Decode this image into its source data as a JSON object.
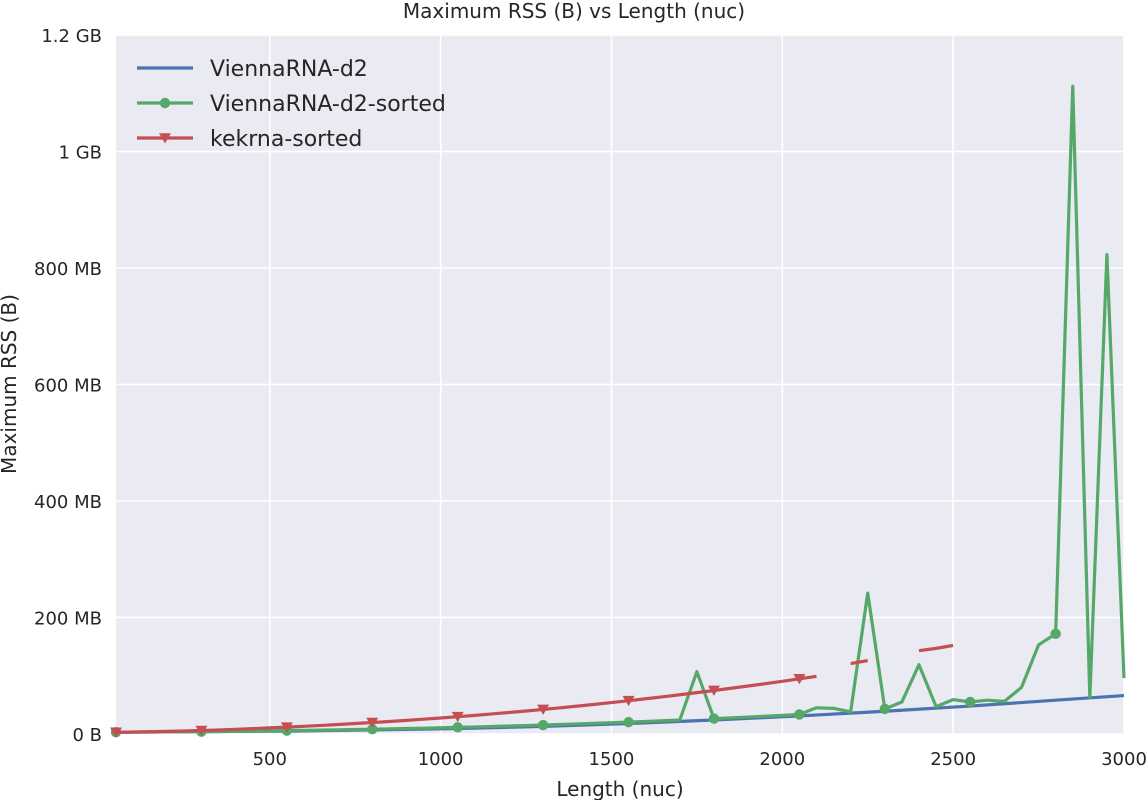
{
  "chart_data": {
    "type": "line",
    "title": "Maximum RSS (B) vs Length (nuc)",
    "xlabel": "Length (nuc)",
    "ylabel": "Maximum RSS (B)",
    "xlim": [
      50,
      3000
    ],
    "ylim": [
      0,
      1200000000
    ],
    "x_ticks": [
      500,
      1000,
      1500,
      2000,
      2500,
      3000
    ],
    "x_tick_labels": [
      "500",
      "1000",
      "1500",
      "2000",
      "2500",
      "3000"
    ],
    "y_ticks": [
      0,
      200000000,
      400000000,
      600000000,
      800000000,
      1000000000,
      1200000000
    ],
    "y_tick_labels": [
      "0 B",
      "200 MB",
      "400 MB",
      "600 MB",
      "800 MB",
      "1 GB",
      "1.2 GB"
    ],
    "grid": true,
    "legend_position": "top-left",
    "series": [
      {
        "name": "ViennaRNA-d2",
        "color": "#4c72b0",
        "marker": "none",
        "x": [
          50,
          300,
          550,
          800,
          1050,
          1300,
          1550,
          1800,
          2050,
          2300,
          2550,
          2800,
          3000
        ],
        "y": [
          3000000,
          4000000,
          5000000,
          7000000,
          9500000,
          13000000,
          18000000,
          24000000,
          31000000,
          39000000,
          48000000,
          58000000,
          66000000
        ]
      },
      {
        "name": "ViennaRNA-d2-sorted",
        "color": "#55a868",
        "marker": "circle",
        "marker_every": 5,
        "x": [
          50,
          100,
          150,
          200,
          250,
          300,
          350,
          400,
          450,
          500,
          550,
          600,
          650,
          700,
          750,
          800,
          850,
          900,
          950,
          1000,
          1050,
          1100,
          1150,
          1200,
          1250,
          1300,
          1350,
          1400,
          1450,
          1500,
          1550,
          1600,
          1650,
          1700,
          1750,
          1800,
          1850,
          1900,
          1950,
          2000,
          2050,
          2100,
          2150,
          2200,
          2250,
          2300,
          2350,
          2400,
          2450,
          2500,
          2550,
          2600,
          2650,
          2700,
          2750,
          2800,
          2850,
          2900,
          2950,
          3000
        ],
        "y": [
          3000000,
          3200000,
          3400000,
          3600000,
          3800000,
          4000000,
          4300000,
          4600000,
          5000000,
          5400000,
          5800000,
          6200000,
          6700000,
          7200000,
          7700000,
          8200000,
          8800000,
          9400000,
          10000000,
          10700000,
          11400000,
          12100000,
          12900000,
          13700000,
          14500000,
          15400000,
          16300000,
          17300000,
          18300000,
          19300000,
          20400000,
          21500000,
          22700000,
          24000000,
          107000000,
          26500000,
          27800000,
          29100000,
          30500000,
          32000000,
          33500000,
          45000000,
          44000000,
          38000000,
          242000000,
          43000000,
          55000000,
          119000000,
          47000000,
          59000000,
          55000000,
          58000000,
          56000000,
          80000000,
          153000000,
          172000000,
          1112000000,
          62000000,
          823000000,
          96000000
        ]
      },
      {
        "name": "kekrna-sorted",
        "color": "#c44e52",
        "marker": "triangle-down",
        "marker_every": 5,
        "x": [
          50,
          100,
          150,
          200,
          250,
          300,
          350,
          400,
          450,
          500,
          550,
          600,
          650,
          700,
          750,
          800,
          850,
          900,
          950,
          1000,
          1050,
          1100,
          1150,
          1200,
          1250,
          1300,
          1350,
          1400,
          1450,
          1500,
          1550,
          1600,
          1650,
          1700,
          1750,
          1800,
          1850,
          1900,
          1950,
          2000,
          2050,
          2100,
          2150,
          2200,
          2250,
          2300,
          2350,
          2400,
          2450,
          2500
        ],
        "y": [
          3000000,
          3400000,
          3900000,
          4500000,
          5200000,
          6000000,
          7000000,
          8000000,
          9200000,
          10500000,
          11800000,
          13200000,
          14700000,
          16300000,
          18000000,
          19700000,
          21500000,
          23400000,
          25400000,
          27500000,
          29700000,
          32000000,
          34400000,
          36900000,
          39500000,
          42200000,
          45000000,
          47900000,
          50900000,
          54000000,
          57200000,
          60500000,
          63900000,
          67400000,
          71000000,
          74700000,
          78500000,
          82400000,
          86400000,
          90500000,
          94700000,
          99000000,
          null,
          121000000,
          126000000,
          null,
          null,
          143000000,
          147000000,
          152000000
        ]
      }
    ]
  }
}
